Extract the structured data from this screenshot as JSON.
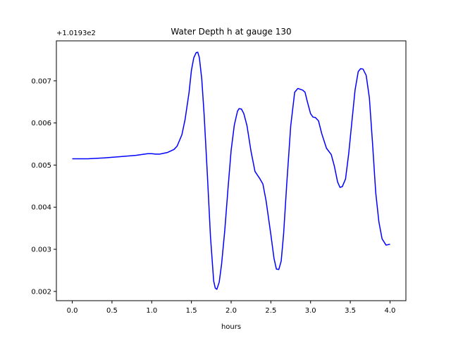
{
  "chart_data": {
    "type": "line",
    "title": "Water Depth h at gauge 130",
    "xlabel": "hours",
    "ylabel": "",
    "offset_text": "+1.0193e2",
    "xlim": [
      -0.2,
      4.2
    ],
    "ylim": [
      0.00178,
      0.00795
    ],
    "xticks": [
      0.0,
      0.5,
      1.0,
      1.5,
      2.0,
      2.5,
      3.0,
      3.5,
      4.0
    ],
    "xtick_labels": [
      "0.0",
      "0.5",
      "1.0",
      "1.5",
      "2.0",
      "2.5",
      "3.0",
      "3.5",
      "4.0"
    ],
    "yticks": [
      0.002,
      0.003,
      0.004,
      0.005,
      0.006,
      0.007
    ],
    "ytick_labels": [
      "0.002",
      "0.003",
      "0.004",
      "0.005",
      "0.006",
      "0.007"
    ],
    "grid": false,
    "series": [
      {
        "color": "#0000ff",
        "x": [
          0.0,
          0.2,
          0.4,
          0.6,
          0.8,
          0.95,
          1.0,
          1.05,
          1.1,
          1.2,
          1.28,
          1.32,
          1.38,
          1.42,
          1.47,
          1.5,
          1.53,
          1.56,
          1.58,
          1.6,
          1.63,
          1.66,
          1.7,
          1.74,
          1.78,
          1.8,
          1.82,
          1.85,
          1.88,
          1.92,
          1.96,
          2.0,
          2.04,
          2.08,
          2.1,
          2.13,
          2.16,
          2.2,
          2.25,
          2.3,
          2.36,
          2.4,
          2.44,
          2.5,
          2.54,
          2.57,
          2.6,
          2.63,
          2.66,
          2.7,
          2.75,
          2.8,
          2.84,
          2.87,
          2.9,
          2.93,
          2.96,
          3.0,
          3.03,
          3.06,
          3.1,
          3.14,
          3.2,
          3.26,
          3.3,
          3.34,
          3.37,
          3.4,
          3.44,
          3.48,
          3.52,
          3.56,
          3.6,
          3.63,
          3.66,
          3.7,
          3.74,
          3.78,
          3.82,
          3.86,
          3.9,
          3.95,
          4.0
        ],
        "y": [
          0.00515,
          0.00515,
          0.00517,
          0.0052,
          0.00523,
          0.00527,
          0.00527,
          0.00526,
          0.00526,
          0.0053,
          0.00537,
          0.00545,
          0.00572,
          0.00608,
          0.00672,
          0.00725,
          0.00755,
          0.00767,
          0.00768,
          0.00755,
          0.00705,
          0.0062,
          0.0048,
          0.0033,
          0.00225,
          0.00208,
          0.00205,
          0.00222,
          0.00265,
          0.00345,
          0.00443,
          0.00535,
          0.00595,
          0.00628,
          0.00634,
          0.00633,
          0.00622,
          0.00593,
          0.00533,
          0.00485,
          0.00468,
          0.00455,
          0.00415,
          0.00335,
          0.00278,
          0.00253,
          0.00252,
          0.00272,
          0.00335,
          0.00455,
          0.00593,
          0.00673,
          0.00682,
          0.0068,
          0.00678,
          0.00673,
          0.0065,
          0.00622,
          0.00614,
          0.00613,
          0.00605,
          0.00575,
          0.0054,
          0.00525,
          0.00497,
          0.0046,
          0.00447,
          0.00449,
          0.00467,
          0.00527,
          0.00603,
          0.00678,
          0.00722,
          0.00729,
          0.00728,
          0.00713,
          0.0066,
          0.00552,
          0.00435,
          0.00365,
          0.00325,
          0.0031,
          0.00312
        ]
      }
    ]
  }
}
